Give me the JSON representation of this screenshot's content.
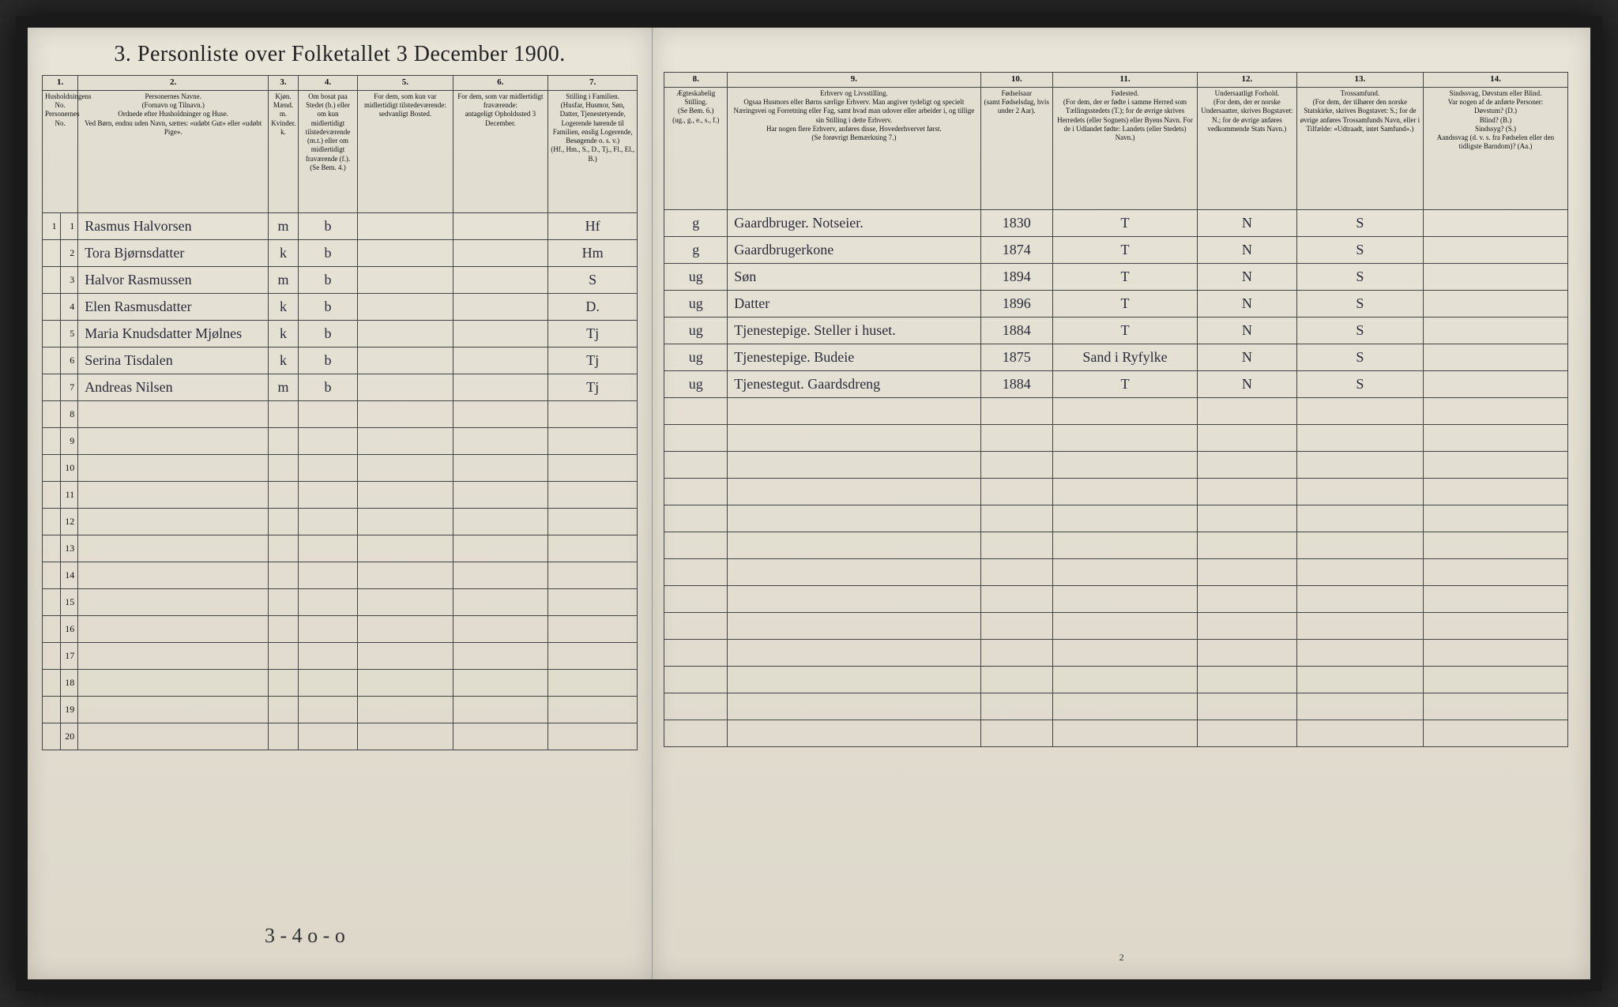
{
  "title": "3. Personliste over Folketallet 3 December 1900.",
  "columns_left": {
    "nums": [
      "1.",
      "2.",
      "3.",
      "4.",
      "5.",
      "6.",
      "7."
    ],
    "headers": [
      "Husholdningens No.\nPersonernes No.",
      "Personernes Navne.\n(Fornavn og Tilnavn.)\nOrdnede efter Husholdninger og Huse.\nVed Børn, endnu uden Navn, sættes: «udøbt Gut» eller «udøbt Pige».",
      "Kjøn.\nMænd. m.\nKvinder. k.",
      "Om bosat paa Stedet (b.) eller om kun midlertidigt tilstedeværende (m.t.) eller om midlertidigt fraværende (f.). (Se Bem. 4.)",
      "For dem, som kun var midlertidigt tilstedeværende:\nsedvanligt Bosted.",
      "For dem, som var midlertidigt fraværende:\nantageligt Opholdssted 3 December.",
      "Stilling i Familien.\n(Husfar, Husmor, Søn, Datter, Tjenestetyende, Logerende hørende til Familien, enslig Logerende, Besøgende o. s. v.)\n(Hf., Hm., S., D., Tj., Fl., El., B.)"
    ]
  },
  "columns_right": {
    "nums": [
      "8.",
      "9.",
      "10.",
      "11.",
      "12.",
      "13.",
      "14."
    ],
    "headers": [
      "Ægteskabelig Stilling.\n(Se Bem. 6.)\n(ug., g., e., s., f.)",
      "Erhverv og Livsstilling.\nOgsaa Husmors eller Børns særlige Erhverv. Man angiver tydeligt og specielt Næringsvei og Forretning eller Fag, samt hvad man udover eller arbeider i, og tillige sin Stilling i dette Erhverv.\nHar nogen flere Erhverv, anføres disse, Hovederhvervet først.\n(Se forøvrigt Bemærkning 7.)",
      "Fødselsaar\n(samt Fødselsdag, hvis under 2 Aar).",
      "Fødested.\n(For dem, der er fødte i samme Herred som Tællingsstedets (T.); for de øvrige skrives Herredets (eller Sognets) eller Byens Navn. For de i Udlandet fødte: Landets (eller Stedets) Navn.)",
      "Undersaatligt Forhold.\n(For dem, der er norske Undersaatter, skrives Bogstavet: N.; for de øvrige anføres vedkommende Stats Navn.)",
      "Trossamfund.\n(For dem, der tilhører den norske Statskirke, skrives Bogstavet: S.; for de øvrige anføres Trossamfunds Navn, eller i Tilfælde: «Udtraadt, intet Samfund».)",
      "Sindssvag, Døvstum eller Blind.\nVar nogen af de anførte Personer:\nDøvstum? (D.)\nBlind? (B.)\nSindssyg? (S.)\nAandssvag (d. v. s. fra Fødselen eller den tidligste Barndom)? (Aa.)"
    ]
  },
  "rows": [
    {
      "hh": "1",
      "pn": "1",
      "name": "Rasmus Halvorsen",
      "sex": "m",
      "res": "b",
      "temp": "",
      "absent": "",
      "fam": "Hf",
      "mar": "g",
      "occ": "Gaardbruger. Notseier.",
      "year": "1830",
      "birthplace": "T",
      "nat": "N",
      "rel": "S",
      "dis": ""
    },
    {
      "hh": "",
      "pn": "2",
      "name": "Tora Bjørnsdatter",
      "sex": "k",
      "res": "b",
      "temp": "",
      "absent": "",
      "fam": "Hm",
      "mar": "g",
      "occ": "Gaardbrugerkone",
      "year": "1874",
      "birthplace": "T",
      "nat": "N",
      "rel": "S",
      "dis": ""
    },
    {
      "hh": "",
      "pn": "3",
      "name": "Halvor Rasmussen",
      "sex": "m",
      "res": "b",
      "temp": "",
      "absent": "",
      "fam": "S",
      "mar": "ug",
      "occ": "Søn",
      "year": "1894",
      "birthplace": "T",
      "nat": "N",
      "rel": "S",
      "dis": ""
    },
    {
      "hh": "",
      "pn": "4",
      "name": "Elen Rasmusdatter",
      "sex": "k",
      "res": "b",
      "temp": "",
      "absent": "",
      "fam": "D.",
      "mar": "ug",
      "occ": "Datter",
      "year": "1896",
      "birthplace": "T",
      "nat": "N",
      "rel": "S",
      "dis": ""
    },
    {
      "hh": "",
      "pn": "5",
      "name": "Maria Knudsdatter Mjølnes",
      "sex": "k",
      "res": "b",
      "temp": "",
      "absent": "",
      "fam": "Tj",
      "mar": "ug",
      "occ": "Tjenestepige. Steller i huset.",
      "year": "1884",
      "birthplace": "T",
      "nat": "N",
      "rel": "S",
      "dis": ""
    },
    {
      "hh": "",
      "pn": "6",
      "name": "Serina Tisdalen",
      "sex": "k",
      "res": "b",
      "temp": "",
      "absent": "",
      "fam": "Tj",
      "mar": "ug",
      "occ": "Tjenestepige. Budeie",
      "year": "1875",
      "birthplace": "Sand i Ryfylke",
      "nat": "N",
      "rel": "S",
      "dis": ""
    },
    {
      "hh": "",
      "pn": "7",
      "name": "Andreas Nilsen",
      "sex": "m",
      "res": "b",
      "temp": "",
      "absent": "",
      "fam": "Tj",
      "mar": "ug",
      "occ": "Tjenestegut. Gaardsdreng",
      "year": "1884",
      "birthplace": "T",
      "nat": "N",
      "rel": "S",
      "dis": ""
    }
  ],
  "total_rows": 20,
  "footer_scrawl": "3 - 4 o - o",
  "page_number": "2",
  "col_widths_left": [
    "3%",
    "3%",
    "32%",
    "5%",
    "10%",
    "16%",
    "16%",
    "15%"
  ],
  "col_widths_right": [
    "7%",
    "28%",
    "8%",
    "16%",
    "11%",
    "14%",
    "16%"
  ]
}
